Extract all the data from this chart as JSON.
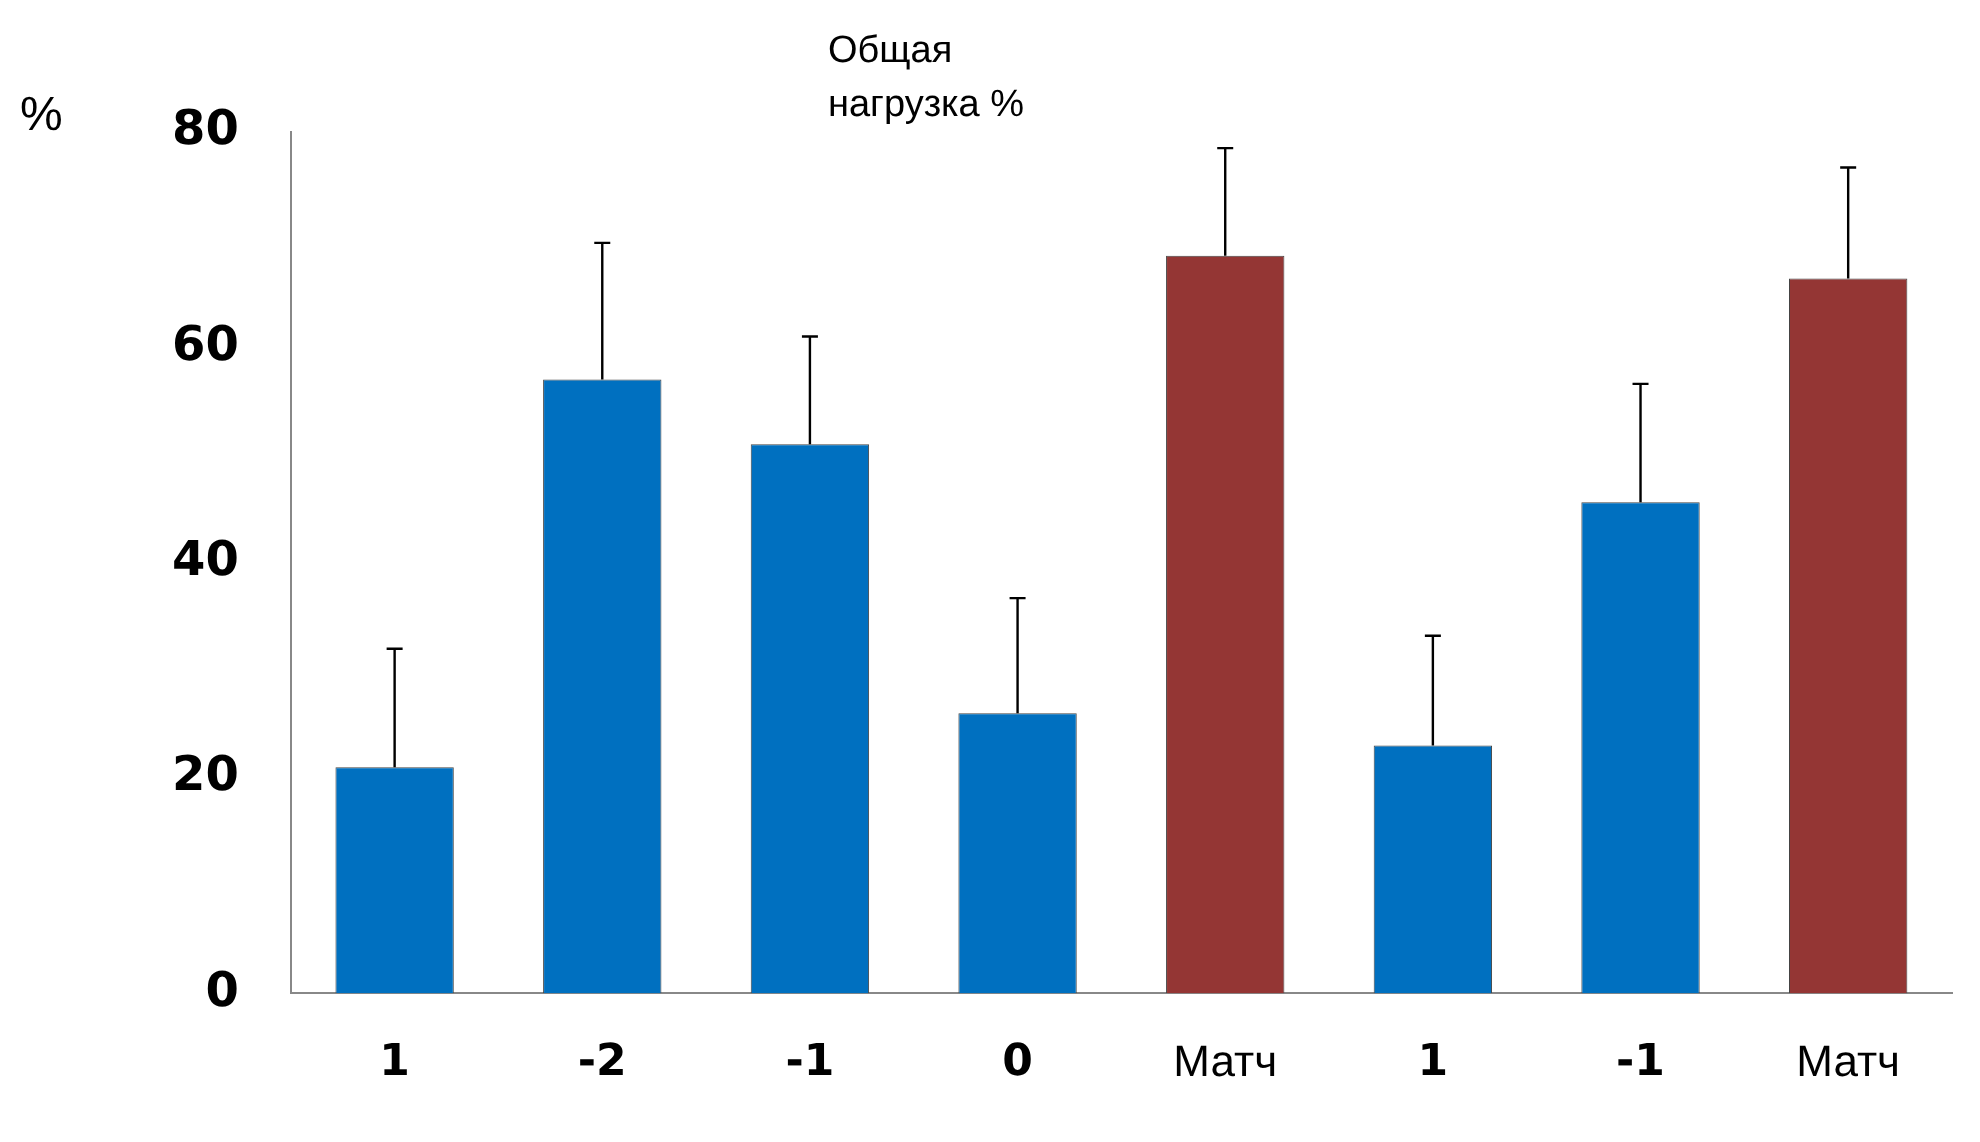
{
  "chart_data": {
    "type": "bar",
    "title": "Общая нагрузка %",
    "ylabel": "%",
    "categories": [
      "1",
      "-2",
      "-1",
      "0",
      "Матч",
      "1",
      "-1",
      "Матч"
    ],
    "values": [
      21,
      57,
      51,
      26,
      68.5,
      23,
      45.6,
      66.4
    ],
    "colors": [
      "#0070c0",
      "#0070c0",
      "#0070c0",
      "#0070c0",
      "#943634",
      "#0070c0",
      "#0070c0",
      "#943634"
    ],
    "errors": [
      [
        21,
        32
      ],
      [
        57,
        69.7
      ],
      [
        51,
        61
      ],
      [
        26,
        36.7
      ],
      [
        68.5,
        78.5
      ],
      [
        23,
        33.2
      ],
      [
        45.6,
        56.6
      ],
      [
        66.4,
        76.7
      ]
    ],
    "ylim": [
      0,
      80
    ],
    "yticks": [
      0,
      20,
      40,
      60,
      80
    ],
    "grid": false,
    "legend": false
  }
}
